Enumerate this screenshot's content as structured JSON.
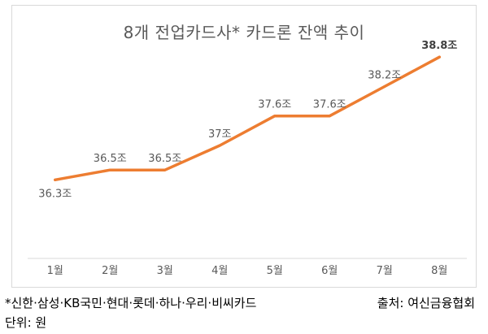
{
  "chart_data": {
    "type": "line",
    "title": "8개 전업카드사* 카드론 잔액 추이",
    "categories": [
      "1월",
      "2월",
      "3월",
      "4월",
      "5월",
      "6월",
      "7월",
      "8월"
    ],
    "series": [
      {
        "values": [
          36.3,
          36.5,
          36.5,
          37.0,
          37.6,
          37.6,
          38.2,
          38.8
        ],
        "labels": [
          "36.3조",
          "36.5조",
          "36.5조",
          "37조",
          "37.6조",
          "37.6조",
          "38.2조",
          "38.8조"
        ],
        "color": "#ED7D31"
      }
    ],
    "ylim": [
      34.7,
      39.3
    ],
    "grid": false
  },
  "footnote": "*신한·삼성·KB국민·현대·롯데·하나·우리·비씨카드",
  "unit_label": "단위: 원",
  "source": "출처: 여신금융협회",
  "colors": {
    "line": "#ED7D31",
    "axis": "#d9d9d9",
    "text": "#595959"
  }
}
